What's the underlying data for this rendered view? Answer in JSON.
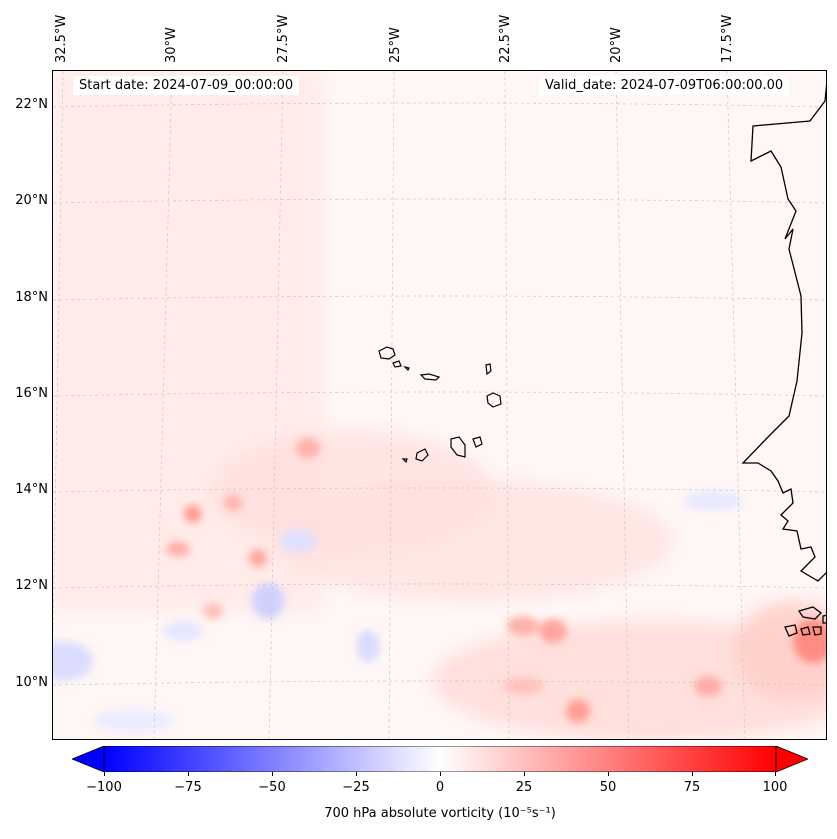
{
  "map": {
    "start_date_text": "Start date: 2024-07-09_00:00:00",
    "valid_date_text": "Valid_date: 2024-07-09T06:00:00.00",
    "longitude_labels": [
      "32.5°W",
      "30°W",
      "27.5°W",
      "25°W",
      "22.5°W",
      "20°W",
      "17.5°W"
    ],
    "latitude_labels": [
      "22°N",
      "20°N",
      "18°N",
      "16°N",
      "14°N",
      "12°N",
      "10°N"
    ],
    "colorbar": {
      "ticks": [
        "−100",
        "−75",
        "−50",
        "−25",
        "0",
        "25",
        "50",
        "75",
        "100"
      ],
      "range": [
        -100,
        100
      ],
      "label": "700 hPa absolute vorticity (10⁻⁵s⁻¹)",
      "negative_color": "#0000ff",
      "zero_color": "#ffffff",
      "positive_color": "#ff0000"
    },
    "colors": {
      "coastline": "#000000",
      "gridline": "#c8c8c8",
      "background": "#fff7f6"
    }
  }
}
